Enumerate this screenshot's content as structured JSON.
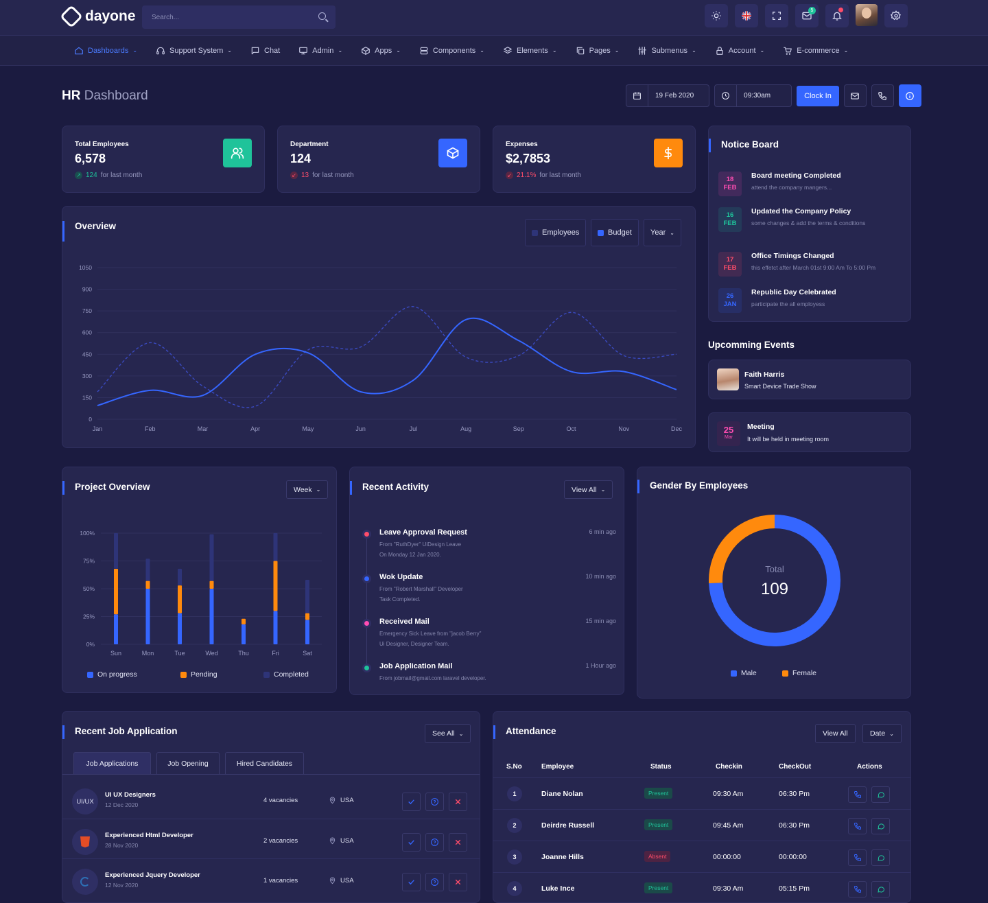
{
  "app": {
    "name": "dayone"
  },
  "search": {
    "placeholder": "Search..."
  },
  "topbar": {
    "mail_badge": "5"
  },
  "nav": [
    {
      "label": "Dashboards",
      "icon": "home-icon",
      "active": true,
      "has_menu": true
    },
    {
      "label": "Support System",
      "icon": "headset-icon",
      "has_menu": true
    },
    {
      "label": "Chat",
      "icon": "chat-icon",
      "has_menu": false
    },
    {
      "label": "Admin",
      "icon": "monitor-icon",
      "has_menu": true
    },
    {
      "label": "Apps",
      "icon": "package-icon",
      "has_menu": true
    },
    {
      "label": "Components",
      "icon": "database-icon",
      "has_menu": true
    },
    {
      "label": "Elements",
      "icon": "layers-icon",
      "has_menu": true
    },
    {
      "label": "Pages",
      "icon": "copy-icon",
      "has_menu": true
    },
    {
      "label": "Submenus",
      "icon": "sliders-icon",
      "has_menu": true
    },
    {
      "label": "Account",
      "icon": "lock-icon",
      "has_menu": true
    },
    {
      "label": "E-commerce",
      "icon": "cart-icon",
      "has_menu": true
    }
  ],
  "page": {
    "title_bold": "HR",
    "title_rest": "Dashboard",
    "date": "19 Feb 2020",
    "time": "09:30am",
    "clock_in_label": "Clock In"
  },
  "stats": [
    {
      "label": "Total Employees",
      "value": "6,578",
      "delta": "124",
      "direction": "up",
      "suffix": "for last month",
      "icon": "users-icon",
      "color": "#1fc39a"
    },
    {
      "label": "Department",
      "value": "124",
      "delta": "13",
      "direction": "down",
      "suffix": "for last month",
      "icon": "box-icon",
      "color": "#3566ff"
    },
    {
      "label": "Expenses",
      "value": "$2,7853",
      "delta": "21.1%",
      "direction": "down",
      "suffix": "for last month",
      "icon": "dollar-icon",
      "color": "#ff8a0d"
    }
  ],
  "notice_board": {
    "title": "Notice Board",
    "items": [
      {
        "day": "18",
        "month": "FEB",
        "title": "Board meeting Completed",
        "sub": "attend the company mangers...",
        "color": "#ff4db2"
      },
      {
        "day": "16",
        "month": "FEB",
        "title": "Updated the Company Policy",
        "sub": "some changes & add the terms & conditions",
        "color": "#1fc39a"
      },
      {
        "day": "17",
        "month": "FEB",
        "title": "Office Timings Changed",
        "sub": "this effetct after March 01st 9:00 Am To 5:00 Pm",
        "color": "#ff4d6a"
      },
      {
        "day": "26",
        "month": "JAN",
        "title": "Republic Day Celebrated",
        "sub": "participate the all employess",
        "color": "#3566ff"
      }
    ]
  },
  "events": {
    "title": "Upcomming Events",
    "items": [
      {
        "name": "Faith Harris",
        "sub": "Smart Device Trade Show"
      },
      {
        "day": "25",
        "month": "Mar",
        "name": "Meeting",
        "sub": "It will be held in meeting room"
      }
    ]
  },
  "overview": {
    "title": "Overview",
    "legend": [
      "Employees",
      "Budget"
    ],
    "period": "Year"
  },
  "chart_data": [
    {
      "type": "line",
      "title": "Overview",
      "x": [
        "Jan",
        "Feb",
        "Mar",
        "Apr",
        "May",
        "Jun",
        "Jul",
        "Aug",
        "Sep",
        "Oct",
        "Nov",
        "Dec"
      ],
      "ylim": [
        0,
        1050
      ],
      "yticks": [
        0,
        150,
        300,
        450,
        600,
        750,
        900,
        1050
      ],
      "grid": true,
      "legend": "top-right",
      "series": [
        {
          "name": "Employees",
          "style": "dashed",
          "color": "#3a4ac0",
          "values": [
            190,
            530,
            230,
            90,
            480,
            500,
            780,
            430,
            440,
            740,
            440,
            450
          ]
        },
        {
          "name": "Budget",
          "style": "solid",
          "color": "#3566ff",
          "values": [
            95,
            200,
            165,
            450,
            460,
            190,
            270,
            690,
            545,
            330,
            330,
            205
          ]
        }
      ]
    },
    {
      "type": "bar",
      "title": "Project Overview",
      "categories": [
        "Sun",
        "Mon",
        "Tue",
        "Wed",
        "Thu",
        "Fri",
        "Sat"
      ],
      "ylim": [
        0,
        100
      ],
      "yticks": [
        "0%",
        "25%",
        "50%",
        "75%",
        "100%"
      ],
      "stacked": true,
      "legend": "bottom",
      "series": [
        {
          "name": "On progress",
          "color": "#3566ff",
          "values": [
            27,
            50,
            28,
            50,
            18,
            30,
            22
          ]
        },
        {
          "name": "Pending",
          "color": "#ff8a0d",
          "values": [
            41,
            7,
            25,
            7,
            5,
            45,
            6
          ]
        },
        {
          "name": "Completed",
          "color": "#2e3478",
          "values": [
            32,
            20,
            15,
            42,
            0,
            25,
            30
          ]
        }
      ]
    },
    {
      "type": "pie",
      "title": "Gender By Employees",
      "center_label": "Total",
      "center_value": "109",
      "legend": "bottom",
      "series": [
        {
          "name": "Male",
          "color": "#3566ff",
          "value": 81
        },
        {
          "name": "Female",
          "color": "#ff8a0d",
          "value": 28
        }
      ]
    }
  ],
  "project_overview": {
    "title": "Project Overview",
    "period": "Week"
  },
  "recent_activity": {
    "title": "Recent Activity",
    "view_all": "View All",
    "items": [
      {
        "title": "Leave Approval Request",
        "line1": "From \"RuthDyer\" UiDesign Leave",
        "line2": "On Monday 12 Jan 2020.",
        "time": "6 min ago",
        "color": "#ff4d6a"
      },
      {
        "title": "Wok Update",
        "line1": "From \"Robert Marshall\" Developer",
        "line2": "Task Completed.",
        "time": "10 min ago",
        "color": "#3566ff"
      },
      {
        "title": "Received Mail",
        "line1": "Emergency Sick Leave from \"jacob Berry\"",
        "line2": "Ui Designer, Designer Team.",
        "time": "15 min ago",
        "color": "#ff4db2"
      },
      {
        "title": "Job Application Mail",
        "line1": "From jobmail@gmail.com laravel developer.",
        "line2": "",
        "time": "1 Hour ago",
        "color": "#1fc39a"
      }
    ]
  },
  "gender": {
    "title": "Gender By Employees"
  },
  "jobs": {
    "title": "Recent Job Application",
    "see_all": "See All",
    "tabs": [
      "Job Applications",
      "Job Opening",
      "Hired Candidates"
    ],
    "rows": [
      {
        "logo": "UI/UX",
        "title": "UI UX Designers",
        "date": "12 Dec 2020",
        "vacancies": "4 vacancies",
        "location": "USA"
      },
      {
        "logo": "html5",
        "title": "Experienced Html Developer",
        "date": "28 Nov 2020",
        "vacancies": "2 vacancies",
        "location": "USA"
      },
      {
        "logo": "jquery",
        "title": "Experienced Jquery Developer",
        "date": "12 Nov 2020",
        "vacancies": "1 vacancies",
        "location": "USA"
      }
    ]
  },
  "attendance": {
    "title": "Attendance",
    "view_all": "View All",
    "date_label": "Date",
    "headers": [
      "S.No",
      "Employee",
      "Status",
      "Checkin",
      "CheckOut",
      "Actions"
    ],
    "rows": [
      {
        "no": "1",
        "name": "Diane Nolan",
        "status": "Present",
        "checkin": "09:30 Am",
        "checkout": "06:30 Pm"
      },
      {
        "no": "2",
        "name": "Deirdre Russell",
        "status": "Present",
        "checkin": "09:45 Am",
        "checkout": "06:30 Pm"
      },
      {
        "no": "3",
        "name": "Joanne Hills",
        "status": "Absent",
        "checkin": "00:00:00",
        "checkout": "00:00:00"
      },
      {
        "no": "4",
        "name": "Luke Ince",
        "status": "Present",
        "checkin": "09:30 Am",
        "checkout": "05:15 Pm"
      }
    ]
  }
}
